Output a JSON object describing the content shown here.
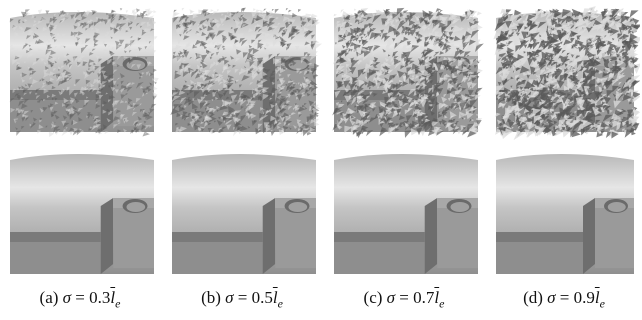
{
  "figure": {
    "panels": [
      {
        "letter": "(a)",
        "value": "0.3",
        "noise_level": 0.3
      },
      {
        "letter": "(b)",
        "value": "0.5",
        "noise_level": 0.5
      },
      {
        "letter": "(c)",
        "value": "0.7",
        "noise_level": 0.7
      },
      {
        "letter": "(d)",
        "value": "0.9",
        "noise_level": 0.9
      }
    ],
    "symbol_sigma": "σ",
    "symbol_equals": "=",
    "symbol_l": "l",
    "symbol_sub": "e"
  },
  "colors": {
    "surface_light": "#c9c9c9",
    "surface_mid": "#9e9e9e",
    "surface_dark": "#6e6e6e",
    "noise_dark": "#5a5a5a",
    "noise_light": "#dcdcdc"
  }
}
